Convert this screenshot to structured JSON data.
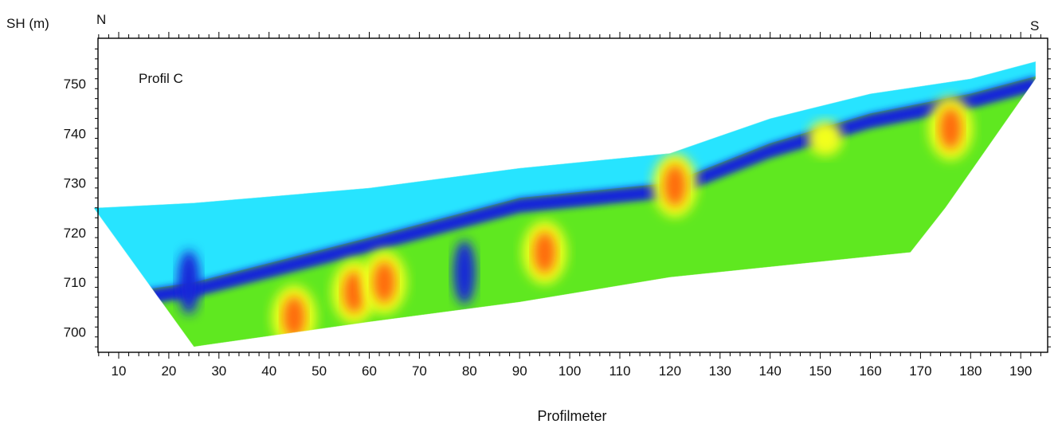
{
  "chart_data": {
    "type": "heatmap",
    "title": "",
    "annotation": "Profil C",
    "xlabel": "Profilmeter",
    "ylabel": "SH (m)",
    "corner_labels": {
      "left": "N",
      "right": "S"
    },
    "xlim": [
      5,
      195
    ],
    "ylim": [
      696,
      758
    ],
    "x_ticks": [
      10,
      20,
      30,
      40,
      50,
      60,
      70,
      80,
      90,
      100,
      110,
      120,
      130,
      140,
      150,
      160,
      170,
      180,
      190
    ],
    "y_ticks": [
      700,
      710,
      720,
      730,
      740,
      750
    ],
    "colors": {
      "surface_layer": "#27e4ff",
      "conductive_layer": "#1426d8",
      "background": "#5fe820",
      "moderate": "#f2ff1c",
      "high": "#ff6a10"
    },
    "profile_outline": {
      "top_surface": [
        [
          5,
          725
        ],
        [
          25,
          726
        ],
        [
          60,
          729
        ],
        [
          90,
          733
        ],
        [
          120,
          736
        ],
        [
          140,
          743
        ],
        [
          160,
          748
        ],
        [
          180,
          751
        ],
        [
          193,
          754.5
        ]
      ],
      "bottom_boundary": [
        [
          5,
          725
        ],
        [
          25,
          697
        ],
        [
          60,
          702
        ],
        [
          90,
          706
        ],
        [
          120,
          711
        ],
        [
          168,
          716
        ],
        [
          175,
          725
        ],
        [
          193,
          751
        ]
      ]
    },
    "anomalies": [
      {
        "level": "high",
        "x": 45,
        "y": 703
      },
      {
        "level": "high",
        "x": 57,
        "y": 708
      },
      {
        "level": "high",
        "x": 63,
        "y": 710
      },
      {
        "level": "high",
        "x": 95,
        "y": 716
      },
      {
        "level": "high",
        "x": 121,
        "y": 729.5
      },
      {
        "level": "high",
        "x": 176,
        "y": 741
      },
      {
        "level": "moderate",
        "x": 151,
        "y": 739
      },
      {
        "level": "conductive_layer",
        "x": 79,
        "y": 712
      },
      {
        "level": "conductive_layer",
        "x": 24,
        "y": 710
      }
    ]
  }
}
